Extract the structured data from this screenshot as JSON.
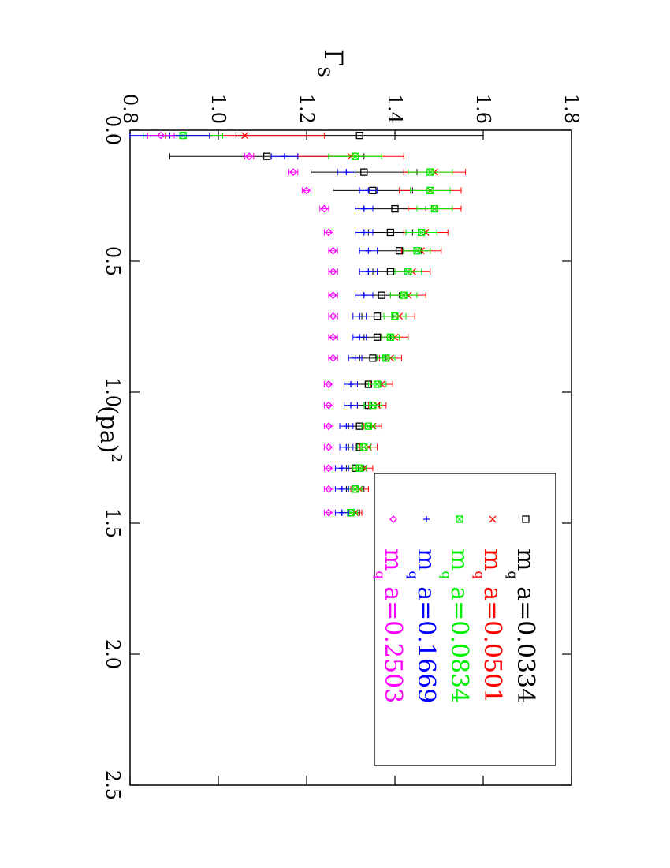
{
  "chart_data": {
    "type": "scatter",
    "orientation": "rotated-90-clockwise",
    "title": "",
    "xlabel": "(pa)",
    "xlabel_sup": "2",
    "ylabel": "Γ",
    "ylabel_sub": "S",
    "xlim": [
      0.0,
      2.5
    ],
    "ylim": [
      0.8,
      1.8
    ],
    "x_ticks": [
      {
        "v": 0.0,
        "label": "0.0"
      },
      {
        "v": 0.5,
        "label": "0.5"
      },
      {
        "v": 1.0,
        "label": "1.0"
      },
      {
        "v": 1.5,
        "label": "1.5"
      },
      {
        "v": 2.0,
        "label": "2.0"
      },
      {
        "v": 2.5,
        "label": "2.5"
      }
    ],
    "y_ticks": [
      {
        "v": 0.8,
        "label": "0.8"
      },
      {
        "v": 1.0,
        "label": "1.0"
      },
      {
        "v": 1.2,
        "label": "1.2"
      },
      {
        "v": 1.4,
        "label": "1.4"
      },
      {
        "v": 1.6,
        "label": "1.6"
      },
      {
        "v": 1.8,
        "label": "1.8"
      }
    ],
    "legend_position": "bottom-right",
    "series": [
      {
        "name": "m_q a=0.0334",
        "label_prefix": "m",
        "label_sub": "q",
        "label_suffix": " a=0.0334",
        "color": "#000000",
        "marker": "square",
        "points": [
          [
            0.02,
            1.32,
            0.28
          ],
          [
            0.1,
            1.11,
            0.22
          ],
          [
            0.16,
            1.33,
            0.12
          ],
          [
            0.23,
            1.35,
            0.09
          ],
          [
            0.3,
            1.4,
            0.07
          ],
          [
            0.39,
            1.39,
            0.05
          ],
          [
            0.46,
            1.41,
            0.05
          ],
          [
            0.54,
            1.39,
            0.04
          ],
          [
            0.63,
            1.37,
            0.04
          ],
          [
            0.71,
            1.36,
            0.035
          ],
          [
            0.79,
            1.36,
            0.03
          ],
          [
            0.87,
            1.35,
            0.03
          ],
          [
            0.97,
            1.34,
            0.03
          ],
          [
            1.05,
            1.34,
            0.025
          ],
          [
            1.13,
            1.32,
            0.025
          ],
          [
            1.21,
            1.32,
            0.025
          ],
          [
            1.29,
            1.31,
            0.02
          ],
          [
            1.37,
            1.31,
            0.02
          ],
          [
            1.46,
            1.3,
            0.02
          ]
        ]
      },
      {
        "name": "m_q a=0.0501",
        "label_prefix": "m",
        "label_sub": "q",
        "label_suffix": " a=0.0501",
        "color": "#ff0000",
        "marker": "cross",
        "points": [
          [
            0.02,
            1.06,
            0.18
          ],
          [
            0.1,
            1.3,
            0.12
          ],
          [
            0.16,
            1.49,
            0.07
          ],
          [
            0.23,
            1.48,
            0.07
          ],
          [
            0.3,
            1.49,
            0.06
          ],
          [
            0.39,
            1.47,
            0.05
          ],
          [
            0.46,
            1.46,
            0.045
          ],
          [
            0.54,
            1.44,
            0.04
          ],
          [
            0.63,
            1.43,
            0.04
          ],
          [
            0.71,
            1.41,
            0.035
          ],
          [
            0.79,
            1.4,
            0.03
          ],
          [
            0.87,
            1.39,
            0.025
          ],
          [
            0.97,
            1.37,
            0.025
          ],
          [
            1.05,
            1.36,
            0.02
          ],
          [
            1.13,
            1.35,
            0.02
          ],
          [
            1.21,
            1.34,
            0.02
          ],
          [
            1.29,
            1.33,
            0.02
          ],
          [
            1.37,
            1.32,
            0.02
          ],
          [
            1.46,
            1.31,
            0.015
          ]
        ]
      },
      {
        "name": "m_q a=0.0834",
        "label_prefix": "m",
        "label_sub": "q",
        "label_suffix": " a=0.0834",
        "color": "#00ee00",
        "marker": "boxcross",
        "points": [
          [
            0.02,
            0.92,
            0.09
          ],
          [
            0.1,
            1.31,
            0.06
          ],
          [
            0.16,
            1.48,
            0.05
          ],
          [
            0.23,
            1.48,
            0.045
          ],
          [
            0.3,
            1.49,
            0.04
          ],
          [
            0.39,
            1.46,
            0.035
          ],
          [
            0.46,
            1.45,
            0.03
          ],
          [
            0.54,
            1.43,
            0.03
          ],
          [
            0.63,
            1.42,
            0.03
          ],
          [
            0.71,
            1.4,
            0.025
          ],
          [
            0.79,
            1.39,
            0.02
          ],
          [
            0.87,
            1.38,
            0.02
          ],
          [
            0.97,
            1.36,
            0.02
          ],
          [
            1.05,
            1.35,
            0.02
          ],
          [
            1.13,
            1.34,
            0.015
          ],
          [
            1.21,
            1.33,
            0.015
          ],
          [
            1.29,
            1.32,
            0.015
          ],
          [
            1.37,
            1.31,
            0.015
          ],
          [
            1.46,
            1.3,
            0.015
          ]
        ]
      },
      {
        "name": "m_q a=0.1669",
        "label_prefix": "m",
        "label_sub": "q",
        "label_suffix": " a=0.1669",
        "color": "#0000ff",
        "marker": "plus",
        "points": [
          [
            0.02,
            0.89,
            0.09
          ],
          [
            0.1,
            1.15,
            0.03
          ],
          [
            0.16,
            1.29,
            0.02
          ],
          [
            0.23,
            1.34,
            0.02
          ],
          [
            0.3,
            1.33,
            0.02
          ],
          [
            0.39,
            1.33,
            0.02
          ],
          [
            0.46,
            1.34,
            0.02
          ],
          [
            0.54,
            1.34,
            0.02
          ],
          [
            0.63,
            1.33,
            0.02
          ],
          [
            0.71,
            1.32,
            0.015
          ],
          [
            0.79,
            1.32,
            0.015
          ],
          [
            0.87,
            1.31,
            0.015
          ],
          [
            0.97,
            1.3,
            0.015
          ],
          [
            1.05,
            1.3,
            0.015
          ],
          [
            1.13,
            1.29,
            0.015
          ],
          [
            1.21,
            1.29,
            0.015
          ],
          [
            1.29,
            1.28,
            0.015
          ],
          [
            1.37,
            1.28,
            0.015
          ],
          [
            1.46,
            1.28,
            0.015
          ]
        ]
      },
      {
        "name": "m_q a=0.2503",
        "label_prefix": "m",
        "label_sub": "q",
        "label_suffix": " a=0.2503",
        "color": "#ff00ff",
        "marker": "diamond",
        "points": [
          [
            0.02,
            0.87,
            0.03
          ],
          [
            0.1,
            1.07,
            0.01
          ],
          [
            0.16,
            1.17,
            0.01
          ],
          [
            0.23,
            1.2,
            0.01
          ],
          [
            0.3,
            1.24,
            0.01
          ],
          [
            0.39,
            1.25,
            0.01
          ],
          [
            0.46,
            1.26,
            0.01
          ],
          [
            0.54,
            1.26,
            0.01
          ],
          [
            0.63,
            1.26,
            0.01
          ],
          [
            0.71,
            1.26,
            0.01
          ],
          [
            0.79,
            1.26,
            0.01
          ],
          [
            0.87,
            1.26,
            0.01
          ],
          [
            0.97,
            1.25,
            0.01
          ],
          [
            1.05,
            1.25,
            0.01
          ],
          [
            1.13,
            1.25,
            0.01
          ],
          [
            1.21,
            1.25,
            0.01
          ],
          [
            1.29,
            1.25,
            0.01
          ],
          [
            1.37,
            1.25,
            0.01
          ],
          [
            1.46,
            1.25,
            0.01
          ]
        ]
      }
    ]
  }
}
